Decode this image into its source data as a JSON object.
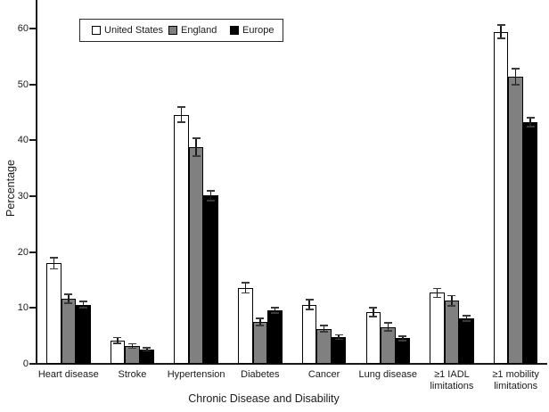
{
  "figure": {
    "background": "#ffffff",
    "text_color": "#1a1a1a"
  },
  "chart_data": {
    "type": "bar",
    "title": "",
    "xlabel": "Chronic Disease and Disability",
    "ylabel": "Percentage",
    "ylim": [
      0,
      60
    ],
    "y_ticks": [
      0,
      10,
      20,
      30,
      40,
      50,
      60
    ],
    "grid": false,
    "error_bars": true,
    "legend_position": "top-left-inside",
    "categories": [
      "Heart disease",
      "Stroke",
      "Hypertension",
      "Diabetes",
      "Cancer",
      "Lung disease",
      "≥1 IADL\nlimitations",
      "≥1 mobility\nlimitations"
    ],
    "series": [
      {
        "name": "United States",
        "color": "#ffffff",
        "values": [
          18.0,
          4.2,
          44.6,
          13.6,
          10.6,
          9.2,
          12.7,
          59.4
        ],
        "errors": [
          1.0,
          0.5,
          1.4,
          0.9,
          0.9,
          0.8,
          0.8,
          1.2
        ]
      },
      {
        "name": "England",
        "color": "#808080",
        "values": [
          11.7,
          3.2,
          38.8,
          7.5,
          6.3,
          6.6,
          11.3,
          51.4
        ],
        "errors": [
          0.8,
          0.4,
          1.6,
          0.6,
          0.6,
          0.7,
          0.9,
          1.4
        ]
      },
      {
        "name": "Europe",
        "color": "#000000",
        "values": [
          10.6,
          2.6,
          30.1,
          9.6,
          4.8,
          4.6,
          8.1,
          43.3
        ],
        "errors": [
          0.6,
          0.3,
          0.9,
          0.5,
          0.4,
          0.4,
          0.5,
          0.8
        ]
      }
    ]
  }
}
